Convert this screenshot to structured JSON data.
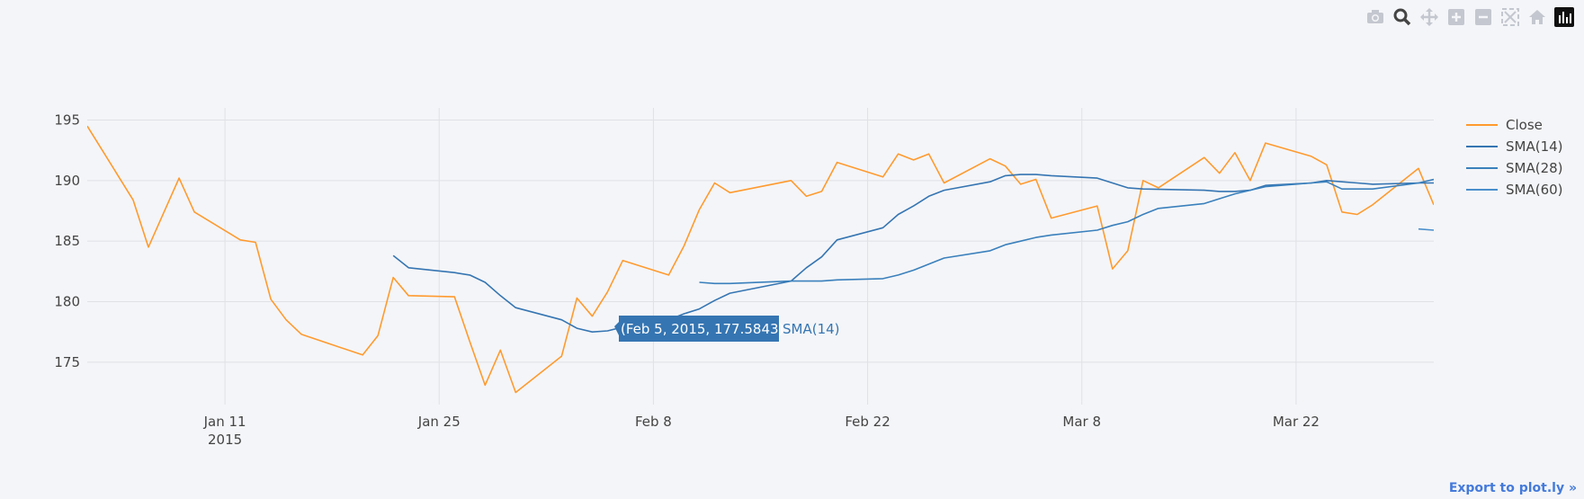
{
  "modebar": {
    "buttons": [
      {
        "icon": "camera-icon"
      },
      {
        "icon": "zoom-icon",
        "active": true
      },
      {
        "icon": "pan-icon"
      },
      {
        "icon": "zoom-in-icon"
      },
      {
        "icon": "zoom-out-icon"
      },
      {
        "icon": "autoscale-icon"
      },
      {
        "icon": "reset-axes-icon"
      },
      {
        "icon": "plotly-logo-icon"
      }
    ]
  },
  "export_label": "Export to plot.ly »",
  "hover": {
    "label": "(Feb 5, 2015, 177.5843)",
    "series": "SMA(14)",
    "x": "2015-02-05",
    "y": 177.5843
  },
  "colors": {
    "close": "#ff9a2e",
    "sma14": "#3575b2",
    "sma28": "#3a80bc",
    "sma60": "#4a8fcc",
    "grid": "#dfe1e6",
    "background": "#f4f5f8"
  },
  "chart_data": {
    "type": "line",
    "title": "",
    "xlabel": "",
    "ylabel": "",
    "xlim": [
      "2015-01-02",
      "2015-03-31"
    ],
    "ylim": [
      171.5,
      196
    ],
    "y_ticks": [
      175,
      180,
      185,
      190,
      195
    ],
    "x_ticks": [
      {
        "date": "2015-01-11",
        "label": "Jan 11",
        "sublabel": "2015"
      },
      {
        "date": "2015-01-25",
        "label": "Jan 25",
        "sublabel": ""
      },
      {
        "date": "2015-02-08",
        "label": "Feb 8",
        "sublabel": ""
      },
      {
        "date": "2015-02-22",
        "label": "Feb 22",
        "sublabel": ""
      },
      {
        "date": "2015-03-08",
        "label": "Mar 8",
        "sublabel": ""
      },
      {
        "date": "2015-03-22",
        "label": "Mar 22",
        "sublabel": ""
      }
    ],
    "grid": true,
    "legend_position": "right",
    "series": [
      {
        "name": "Close",
        "color": "#ff9a2e",
        "points": [
          [
            "2015-01-02",
            194.5
          ],
          [
            "2015-01-05",
            188.4
          ],
          [
            "2015-01-06",
            184.5
          ],
          [
            "2015-01-08",
            190.2
          ],
          [
            "2015-01-09",
            187.4
          ],
          [
            "2015-01-12",
            185.1
          ],
          [
            "2015-01-13",
            184.9
          ],
          [
            "2015-01-14",
            180.2
          ],
          [
            "2015-01-15",
            178.5
          ],
          [
            "2015-01-16",
            177.3
          ],
          [
            "2015-01-20",
            175.6
          ],
          [
            "2015-01-21",
            177.2
          ],
          [
            "2015-01-22",
            182.0
          ],
          [
            "2015-01-23",
            180.5
          ],
          [
            "2015-01-26",
            180.4
          ],
          [
            "2015-01-27",
            176.7
          ],
          [
            "2015-01-28",
            173.1
          ],
          [
            "2015-01-29",
            176.0
          ],
          [
            "2015-01-30",
            172.5
          ],
          [
            "2015-02-02",
            175.5
          ],
          [
            "2015-02-03",
            180.3
          ],
          [
            "2015-02-04",
            178.8
          ],
          [
            "2015-02-05",
            180.8
          ],
          [
            "2015-02-06",
            183.4
          ],
          [
            "2015-02-09",
            182.2
          ],
          [
            "2015-02-10",
            184.6
          ],
          [
            "2015-02-11",
            187.6
          ],
          [
            "2015-02-12",
            189.8
          ],
          [
            "2015-02-13",
            189.0
          ],
          [
            "2015-02-17",
            190.0
          ],
          [
            "2015-02-18",
            188.7
          ],
          [
            "2015-02-19",
            189.1
          ],
          [
            "2015-02-20",
            191.5
          ],
          [
            "2015-02-23",
            190.3
          ],
          [
            "2015-02-24",
            192.2
          ],
          [
            "2015-02-25",
            191.7
          ],
          [
            "2015-02-26",
            192.2
          ],
          [
            "2015-02-27",
            189.8
          ],
          [
            "2015-03-02",
            191.8
          ],
          [
            "2015-03-03",
            191.2
          ],
          [
            "2015-03-04",
            189.7
          ],
          [
            "2015-03-05",
            190.1
          ],
          [
            "2015-03-06",
            186.9
          ],
          [
            "2015-03-09",
            187.9
          ],
          [
            "2015-03-10",
            182.7
          ],
          [
            "2015-03-11",
            184.2
          ],
          [
            "2015-03-12",
            190.0
          ],
          [
            "2015-03-13",
            189.4
          ],
          [
            "2015-03-16",
            191.9
          ],
          [
            "2015-03-17",
            190.6
          ],
          [
            "2015-03-18",
            192.3
          ],
          [
            "2015-03-19",
            190.0
          ],
          [
            "2015-03-20",
            193.1
          ],
          [
            "2015-03-23",
            192.0
          ],
          [
            "2015-03-24",
            191.3
          ],
          [
            "2015-03-25",
            187.4
          ],
          [
            "2015-03-26",
            187.2
          ],
          [
            "2015-03-27",
            188.0
          ],
          [
            "2015-03-30",
            191.0
          ],
          [
            "2015-03-31",
            188.0
          ]
        ]
      },
      {
        "name": "SMA(14)",
        "color": "#3575b2",
        "points": [
          [
            "2015-01-22",
            183.8
          ],
          [
            "2015-01-23",
            182.8
          ],
          [
            "2015-01-26",
            182.4
          ],
          [
            "2015-01-27",
            182.2
          ],
          [
            "2015-01-28",
            181.6
          ],
          [
            "2015-01-29",
            180.5
          ],
          [
            "2015-01-30",
            179.5
          ],
          [
            "2015-02-02",
            178.5
          ],
          [
            "2015-02-03",
            177.8
          ],
          [
            "2015-02-04",
            177.5
          ],
          [
            "2015-02-05",
            177.5843
          ],
          [
            "2015-02-06",
            177.9
          ],
          [
            "2015-02-09",
            178.5
          ],
          [
            "2015-02-10",
            179.0
          ],
          [
            "2015-02-11",
            179.4
          ],
          [
            "2015-02-12",
            180.1
          ],
          [
            "2015-02-13",
            180.7
          ],
          [
            "2015-02-17",
            181.7
          ],
          [
            "2015-02-18",
            182.8
          ],
          [
            "2015-02-19",
            183.7
          ],
          [
            "2015-02-20",
            185.1
          ],
          [
            "2015-02-23",
            186.1
          ],
          [
            "2015-02-24",
            187.2
          ],
          [
            "2015-02-25",
            187.9
          ],
          [
            "2015-02-26",
            188.7
          ],
          [
            "2015-02-27",
            189.2
          ],
          [
            "2015-03-02",
            189.9
          ],
          [
            "2015-03-03",
            190.4
          ],
          [
            "2015-03-04",
            190.5
          ],
          [
            "2015-03-05",
            190.5
          ],
          [
            "2015-03-06",
            190.4
          ],
          [
            "2015-03-09",
            190.2
          ],
          [
            "2015-03-10",
            189.8
          ],
          [
            "2015-03-11",
            189.4
          ],
          [
            "2015-03-12",
            189.3
          ],
          [
            "2015-03-16",
            189.2
          ],
          [
            "2015-03-17",
            189.1
          ],
          [
            "2015-03-18",
            189.1
          ],
          [
            "2015-03-19",
            189.2
          ],
          [
            "2015-03-20",
            189.6
          ],
          [
            "2015-03-23",
            189.8
          ],
          [
            "2015-03-24",
            190.0
          ],
          [
            "2015-03-25",
            189.9
          ],
          [
            "2015-03-26",
            189.8
          ],
          [
            "2015-03-27",
            189.7
          ],
          [
            "2015-03-30",
            189.8
          ],
          [
            "2015-03-31",
            189.8
          ]
        ]
      },
      {
        "name": "SMA(28)",
        "color": "#3a80bc",
        "points": [
          [
            "2015-02-11",
            181.6
          ],
          [
            "2015-02-12",
            181.5
          ],
          [
            "2015-02-13",
            181.5
          ],
          [
            "2015-02-17",
            181.7
          ],
          [
            "2015-02-18",
            181.7
          ],
          [
            "2015-02-19",
            181.7
          ],
          [
            "2015-02-20",
            181.8
          ],
          [
            "2015-02-23",
            181.9
          ],
          [
            "2015-02-24",
            182.2
          ],
          [
            "2015-02-25",
            182.6
          ],
          [
            "2015-02-26",
            183.1
          ],
          [
            "2015-02-27",
            183.6
          ],
          [
            "2015-03-02",
            184.2
          ],
          [
            "2015-03-03",
            184.7
          ],
          [
            "2015-03-04",
            185.0
          ],
          [
            "2015-03-05",
            185.3
          ],
          [
            "2015-03-06",
            185.5
          ],
          [
            "2015-03-09",
            185.9
          ],
          [
            "2015-03-10",
            186.3
          ],
          [
            "2015-03-11",
            186.6
          ],
          [
            "2015-03-12",
            187.2
          ],
          [
            "2015-03-13",
            187.7
          ],
          [
            "2015-03-16",
            188.1
          ],
          [
            "2015-03-17",
            188.5
          ],
          [
            "2015-03-18",
            188.9
          ],
          [
            "2015-03-19",
            189.2
          ],
          [
            "2015-03-20",
            189.5
          ],
          [
            "2015-03-23",
            189.8
          ],
          [
            "2015-03-24",
            189.9
          ],
          [
            "2015-03-25",
            189.3
          ],
          [
            "2015-03-27",
            189.3
          ],
          [
            "2015-03-30",
            189.8
          ],
          [
            "2015-03-31",
            190.1
          ]
        ]
      },
      {
        "name": "SMA(60)",
        "color": "#4a8fcc",
        "points": [
          [
            "2015-03-30",
            186.0
          ],
          [
            "2015-03-31",
            185.9
          ]
        ]
      }
    ]
  }
}
